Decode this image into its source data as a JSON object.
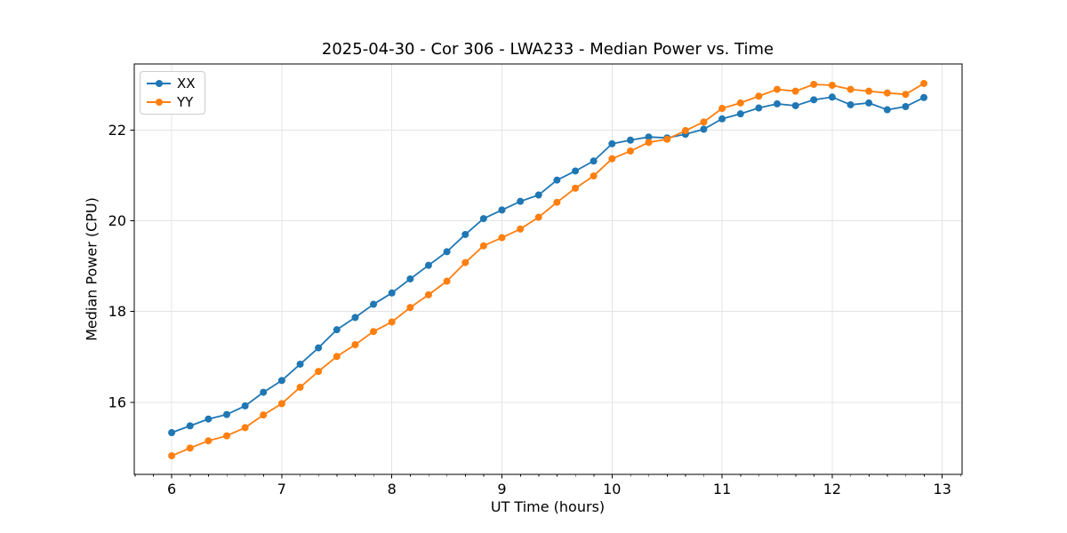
{
  "chart_data": {
    "type": "line",
    "title": "2025-04-30 - Cor 306 - LWA233 - Median Power vs. Time",
    "xlabel": "UT Time (hours)",
    "ylabel": "Median Power (CPU)",
    "xlim": [
      5.66,
      13.18
    ],
    "ylim": [
      14.41,
      23.46
    ],
    "x_ticks": [
      6,
      7,
      8,
      9,
      10,
      11,
      12,
      13
    ],
    "y_ticks": [
      16,
      18,
      20,
      22
    ],
    "x_minor_tick_step": 0.1667,
    "grid": true,
    "legend_position": "upper-left",
    "x": [
      6.0,
      6.167,
      6.333,
      6.5,
      6.667,
      6.833,
      7.0,
      7.167,
      7.333,
      7.5,
      7.667,
      7.833,
      8.0,
      8.167,
      8.333,
      8.5,
      8.667,
      8.833,
      9.0,
      9.167,
      9.333,
      9.5,
      9.667,
      9.833,
      10.0,
      10.167,
      10.333,
      10.5,
      10.667,
      10.833,
      11.0,
      11.167,
      11.333,
      11.5,
      11.667,
      11.833,
      12.0,
      12.167,
      12.333,
      12.5,
      12.667,
      12.833
    ],
    "series": [
      {
        "name": "XX",
        "color": "#1f77b4",
        "values": [
          15.33,
          15.48,
          15.63,
          15.73,
          15.92,
          16.22,
          16.48,
          16.84,
          17.2,
          17.6,
          17.87,
          18.16,
          18.41,
          18.72,
          19.02,
          19.32,
          19.7,
          20.05,
          20.24,
          20.43,
          20.57,
          20.9,
          21.1,
          21.32,
          21.7,
          21.78,
          21.85,
          21.83,
          21.91,
          22.02,
          22.25,
          22.36,
          22.49,
          22.58,
          22.54,
          22.67,
          22.73,
          22.56,
          22.6,
          22.45,
          22.52,
          22.72
        ]
      },
      {
        "name": "YY",
        "color": "#ff7f0e",
        "values": [
          14.82,
          14.99,
          15.15,
          15.26,
          15.44,
          15.72,
          15.97,
          16.33,
          16.68,
          17.01,
          17.27,
          17.56,
          17.77,
          18.09,
          18.37,
          18.67,
          19.08,
          19.45,
          19.63,
          19.82,
          20.08,
          20.41,
          20.72,
          20.99,
          21.37,
          21.54,
          21.73,
          21.8,
          21.99,
          22.18,
          22.48,
          22.6,
          22.75,
          22.9,
          22.86,
          23.01,
          22.99,
          22.9,
          22.86,
          22.82,
          22.79,
          23.03
        ]
      }
    ],
    "style": {
      "grid_color": "#e4e4e4",
      "spine_color": "#000000",
      "tick_label_color": "#000000",
      "marker_radius": 4,
      "line_width": 1.8
    }
  }
}
